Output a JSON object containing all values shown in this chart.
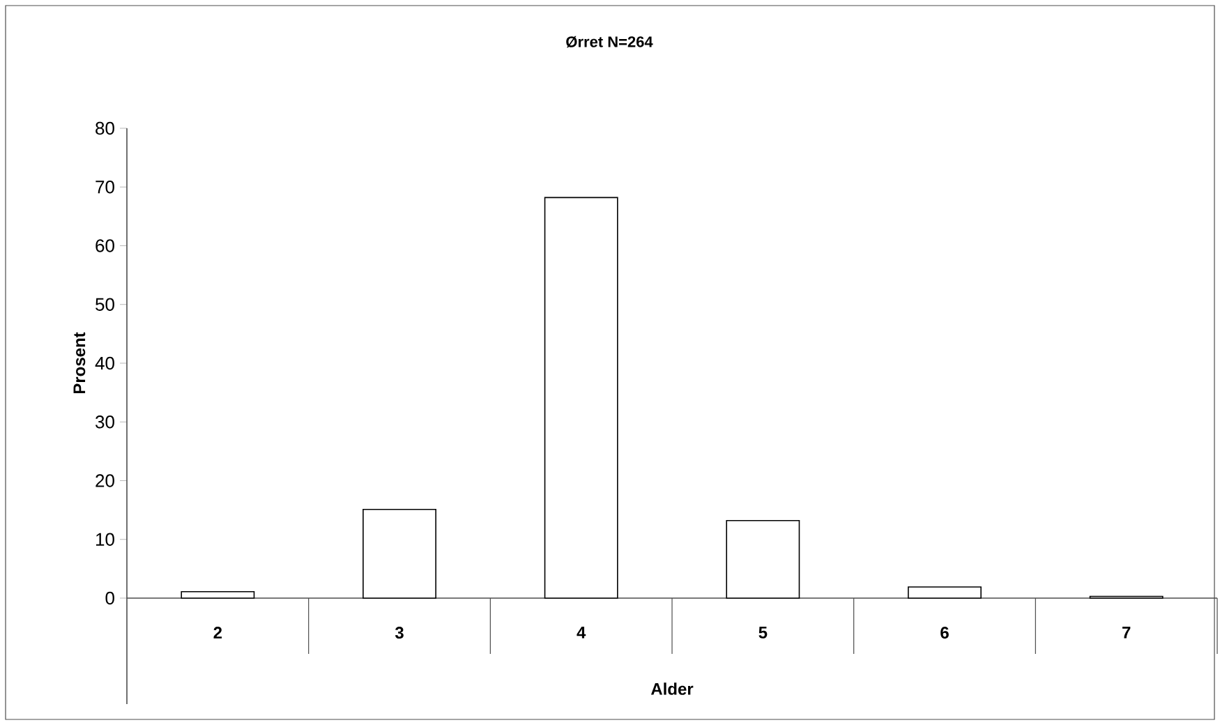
{
  "chart_data": {
    "type": "bar",
    "title": "Ørret N=264",
    "xlabel": "Alder",
    "ylabel": "Prosent",
    "categories": [
      "2",
      "3",
      "4",
      "5",
      "6",
      "7"
    ],
    "values": [
      1.1,
      15.1,
      68.2,
      13.2,
      1.9,
      0.3
    ],
    "color": "#ffffff",
    "ylim": [
      0,
      80
    ],
    "yticks": [
      0,
      10,
      20,
      30,
      40,
      50,
      60,
      70,
      80
    ],
    "grid": false
  }
}
